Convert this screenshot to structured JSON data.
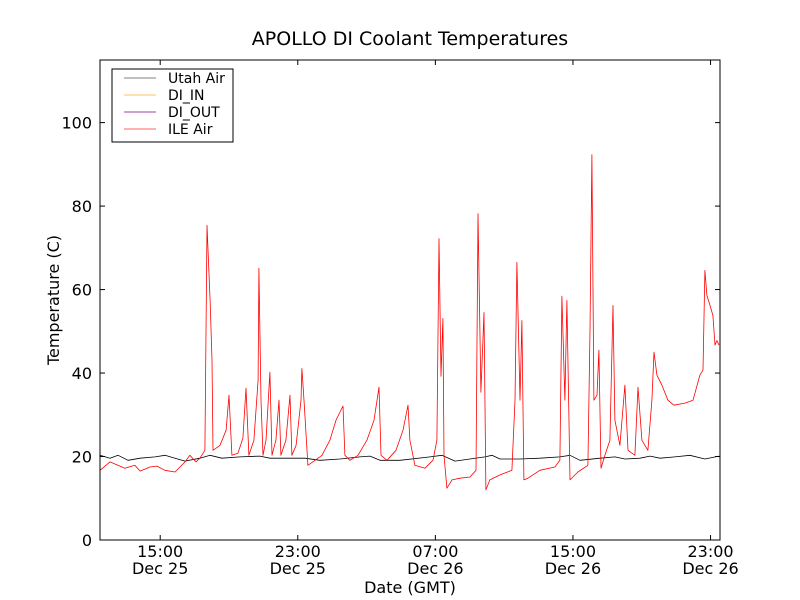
{
  "chart_data": {
    "type": "line",
    "title": "APOLLO DI Coolant Temperatures",
    "xlabel": "Date (GMT)",
    "ylabel": "Temperature (C)",
    "x_units": "hours since Dec 25 00:00 GMT",
    "xlim": [
      11.5,
      47.55
    ],
    "ylim": [
      0,
      115
    ],
    "grid": false,
    "legend_placement": "top-left",
    "x_ticks": [
      {
        "value": 15,
        "time": "15:00",
        "date": "Dec 25"
      },
      {
        "value": 23,
        "time": "23:00",
        "date": "Dec 25"
      },
      {
        "value": 31,
        "time": "07:00",
        "date": "Dec 26"
      },
      {
        "value": 39,
        "time": "15:00",
        "date": "Dec 26"
      },
      {
        "value": 47,
        "time": "23:00",
        "date": "Dec 26"
      }
    ],
    "y_ticks": [
      0,
      20,
      40,
      60,
      80,
      100
    ],
    "series": [
      {
        "name": "Utah Air",
        "color": "#000000",
        "legend_color": "#808080",
        "x": [
          11.5,
          12.08,
          12.55,
          13.13,
          13.83,
          14.7,
          15.28,
          15.86,
          16.44,
          17.31,
          17.9,
          18.59,
          19.64,
          20.8,
          21.38,
          22.55,
          23.42,
          24.29,
          25.45,
          26.62,
          27.2,
          27.78,
          28.94,
          30.69,
          31.38,
          32.14,
          33.01,
          33.88,
          34.29,
          34.76,
          35.92,
          37.08,
          38.24,
          38.83,
          39.41,
          40.57,
          41.44,
          42.02,
          42.9,
          43.48,
          44.06,
          44.93,
          45.8,
          46.67,
          47.49
        ],
        "y": [
          20.3,
          19.6,
          20.3,
          19.1,
          19.6,
          19.9,
          20.3,
          19.6,
          18.9,
          19.6,
          20.3,
          19.6,
          19.9,
          20.1,
          19.6,
          19.6,
          19.6,
          19.1,
          19.4,
          19.9,
          20.1,
          19.1,
          19.1,
          19.9,
          20.3,
          18.9,
          19.4,
          19.9,
          20.3,
          19.4,
          19.4,
          19.6,
          19.9,
          20.3,
          19.1,
          19.6,
          19.9,
          19.4,
          19.6,
          20.1,
          19.6,
          19.9,
          20.3,
          19.4,
          20.1
        ]
      },
      {
        "name": "DI_IN",
        "color": "#ffa500",
        "legend_color": "#ffc060",
        "x": [],
        "y": []
      },
      {
        "name": "DI_OUT",
        "color": "#800080",
        "legend_color": "#a040a0",
        "x": [],
        "y": []
      },
      {
        "name": "ILE Air",
        "color": "#ff0000",
        "legend_color": "#ff6060",
        "x": [
          11.5,
          12.08,
          12.95,
          13.53,
          13.83,
          14.41,
          14.81,
          15.28,
          15.86,
          16.44,
          16.73,
          17.08,
          17.31,
          17.6,
          17.72,
          17.9,
          18.01,
          18.07,
          18.48,
          18.83,
          19.0,
          19.17,
          19.52,
          19.81,
          19.99,
          20.16,
          20.45,
          20.69,
          20.74,
          20.86,
          20.98,
          21.15,
          21.38,
          21.5,
          21.73,
          21.91,
          22.02,
          22.31,
          22.55,
          22.66,
          22.9,
          23.19,
          23.24,
          23.36,
          23.59,
          24.0,
          24.41,
          24.87,
          25.22,
          25.63,
          25.74,
          26.03,
          26.5,
          27.02,
          27.43,
          27.72,
          27.84,
          28.19,
          28.71,
          29.12,
          29.41,
          29.52,
          29.81,
          30.4,
          30.86,
          31.09,
          31.21,
          31.33,
          31.44,
          31.5,
          31.67,
          31.97,
          32.43,
          33.01,
          33.36,
          33.48,
          33.65,
          33.83,
          33.94,
          34.17,
          34.76,
          35.45,
          35.63,
          35.74,
          35.92,
          36.03,
          36.15,
          36.38,
          37.08,
          37.95,
          38.24,
          38.36,
          38.53,
          38.65,
          38.83,
          39.29,
          39.87,
          39.99,
          40.1,
          40.22,
          40.4,
          40.51,
          40.63,
          40.86,
          41.15,
          41.33,
          41.44,
          41.73,
          42.02,
          42.2,
          42.6,
          42.78,
          43.01,
          43.36,
          43.59,
          43.71,
          43.88,
          44.17,
          44.52,
          44.87,
          45.51,
          45.98,
          46.38,
          46.56,
          46.67,
          46.79,
          46.97,
          47.14,
          47.26,
          47.37,
          47.49
        ],
        "y": [
          16.7,
          18.7,
          17.2,
          17.9,
          16.5,
          17.5,
          17.7,
          16.7,
          16.3,
          18.7,
          20.3,
          18.7,
          19.6,
          21.5,
          75.4,
          57.4,
          43.1,
          21.5,
          22.7,
          26.3,
          34.7,
          20.3,
          20.8,
          24.4,
          36.4,
          20.3,
          23.9,
          38.3,
          65.1,
          33.5,
          20.3,
          23.9,
          40.2,
          20.3,
          23.9,
          33.5,
          20.3,
          23.9,
          34.7,
          20.3,
          22.7,
          33.5,
          41.1,
          33.5,
          17.9,
          19.1,
          20.3,
          23.9,
          28.7,
          32.1,
          20.3,
          19.1,
          20.3,
          23.9,
          28.7,
          36.6,
          20.3,
          19.1,
          21.5,
          26.3,
          32.3,
          23.9,
          17.9,
          17.2,
          19.1,
          23.9,
          72.2,
          39.2,
          53.1,
          20.3,
          12.4,
          14.4,
          14.8,
          15.1,
          16.7,
          78.2,
          35.4,
          54.5,
          12.0,
          14.4,
          15.6,
          16.7,
          33.5,
          66.5,
          33.5,
          52.6,
          14.4,
          14.8,
          16.7,
          17.5,
          19.1,
          58.4,
          33.5,
          57.4,
          14.4,
          16.3,
          17.9,
          50.2,
          92.3,
          33.5,
          34.7,
          45.5,
          17.2,
          20.3,
          23.9,
          56.2,
          28.7,
          22.7,
          37.1,
          21.5,
          20.3,
          36.6,
          23.9,
          21.5,
          33.5,
          45.0,
          39.5,
          37.1,
          33.5,
          32.3,
          32.8,
          33.5,
          39.5,
          40.7,
          64.6,
          58.6,
          56.2,
          53.8,
          46.7,
          47.8,
          46.7
        ]
      }
    ]
  }
}
